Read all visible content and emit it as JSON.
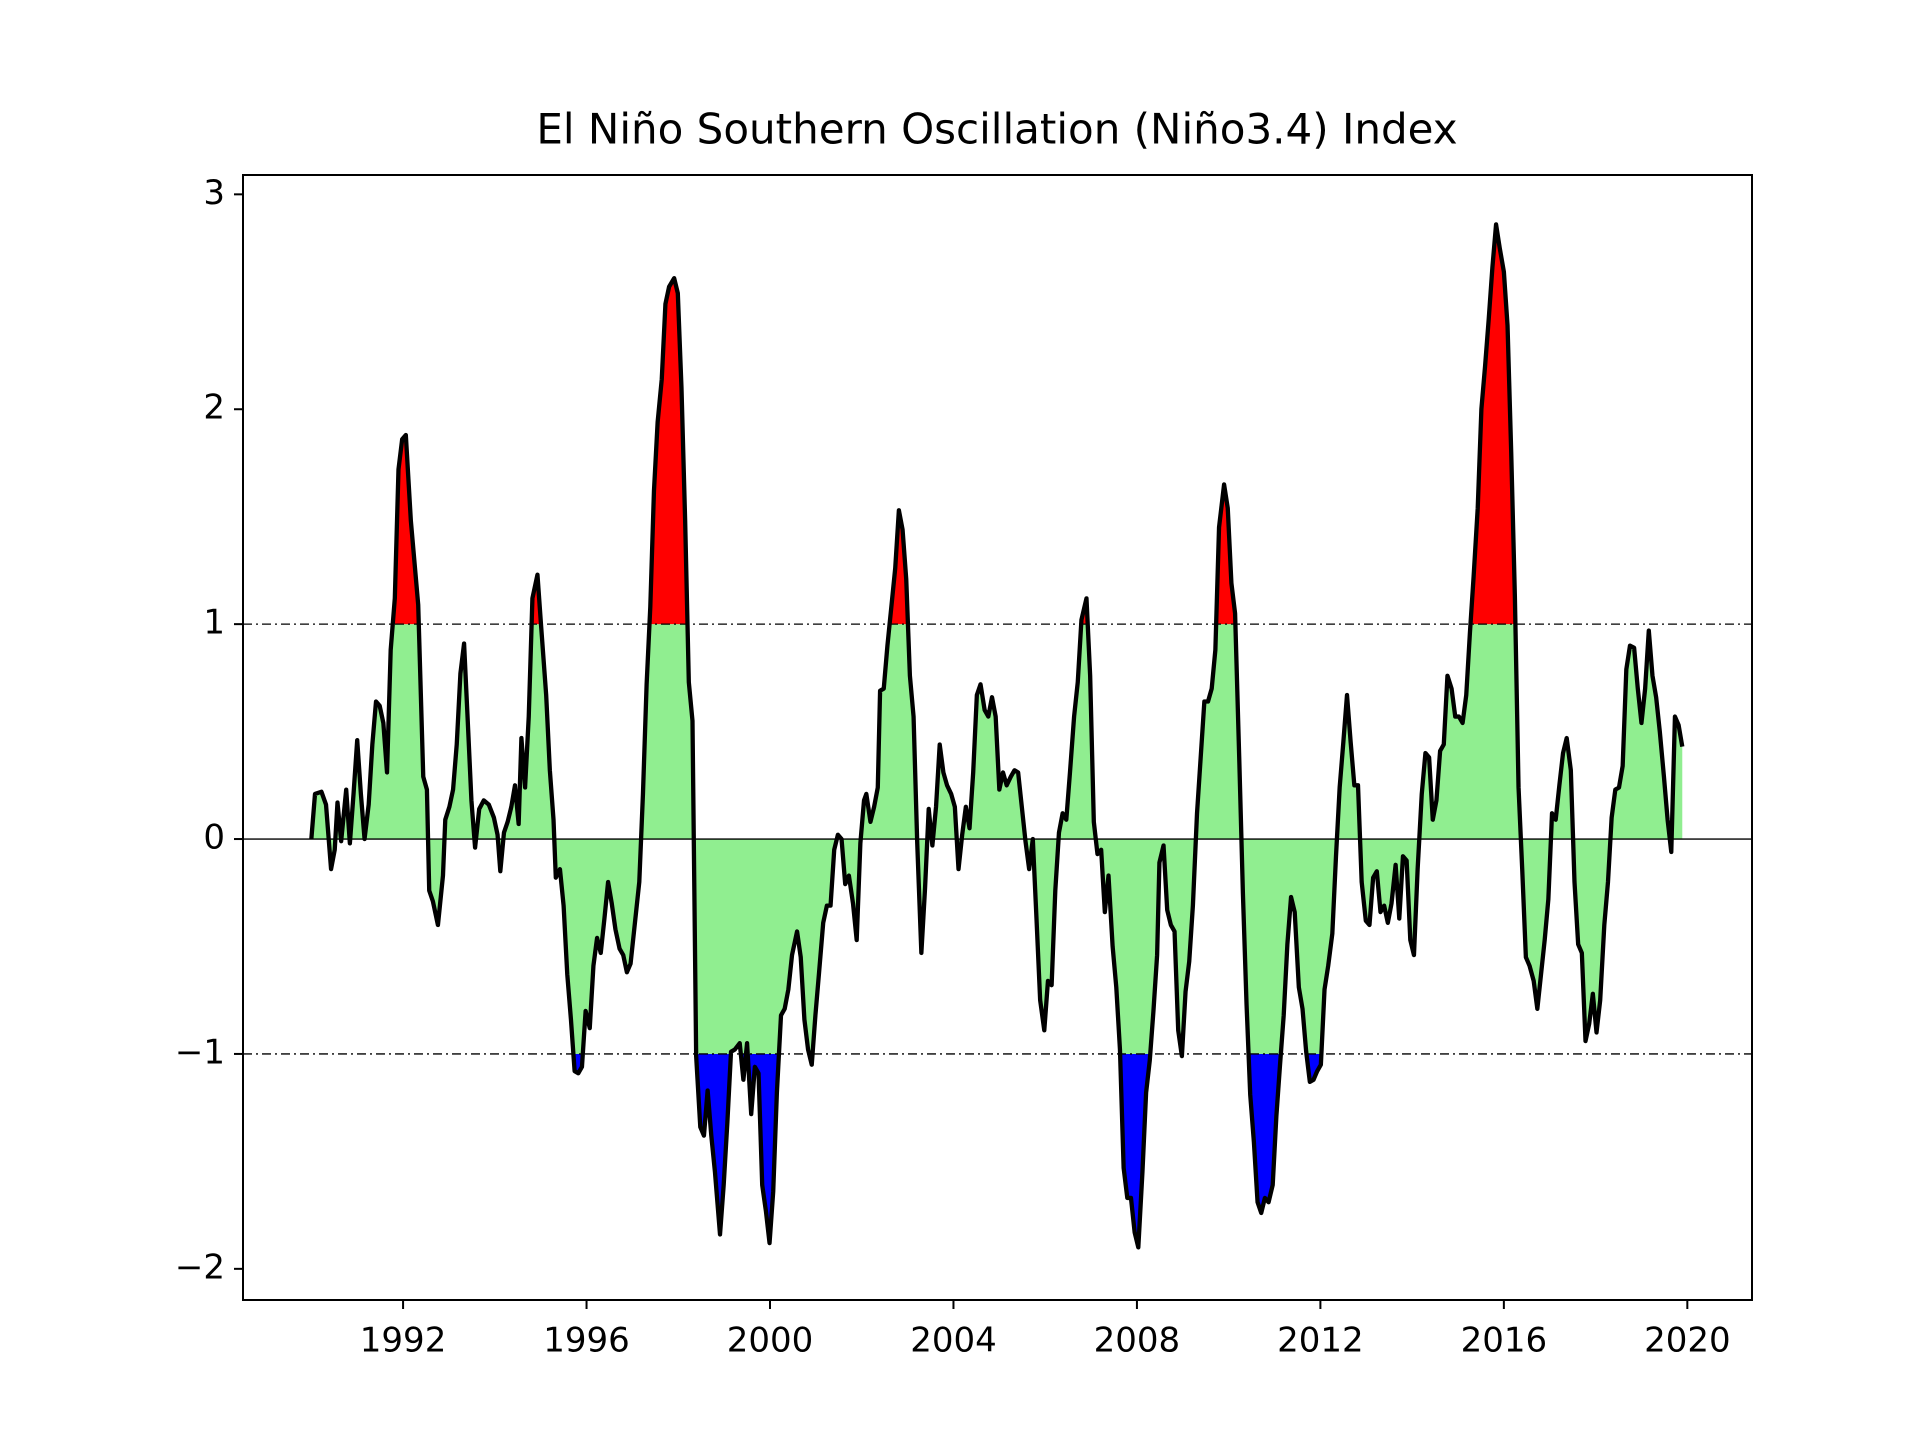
{
  "chart_data": {
    "type": "line",
    "title": "El Niño Southern Oscillation (Niño3.4) Index",
    "x": [
      1990.0,
      1990.08,
      1990.22,
      1990.32,
      1990.43,
      1990.51,
      1990.57,
      1990.65,
      1990.76,
      1990.84,
      1990.92,
      1991.0,
      1991.08,
      1991.16,
      1991.25,
      1991.33,
      1991.41,
      1991.49,
      1991.57,
      1991.65,
      1991.73,
      1991.82,
      1991.9,
      1991.98,
      1992.06,
      1992.17,
      1992.33,
      1992.44,
      1992.52,
      1992.57,
      1992.65,
      1992.76,
      1992.87,
      1992.92,
      1993.01,
      1993.09,
      1993.17,
      1993.25,
      1993.33,
      1993.41,
      1993.49,
      1993.57,
      1993.66,
      1993.76,
      1993.87,
      1993.98,
      1994.06,
      1994.12,
      1994.2,
      1994.28,
      1994.36,
      1994.44,
      1994.52,
      1994.58,
      1994.66,
      1994.74,
      1994.82,
      1994.93,
      1995.01,
      1995.12,
      1995.2,
      1995.28,
      1995.33,
      1995.42,
      1995.5,
      1995.58,
      1995.66,
      1995.74,
      1995.82,
      1995.9,
      1995.98,
      1996.07,
      1996.15,
      1996.23,
      1996.31,
      1996.39,
      1996.47,
      1996.55,
      1996.63,
      1996.72,
      1996.8,
      1996.88,
      1996.96,
      1997.04,
      1997.15,
      1997.23,
      1997.31,
      1997.39,
      1997.47,
      1997.55,
      1997.64,
      1997.72,
      1997.8,
      1997.91,
      1997.99,
      1998.07,
      1998.15,
      1998.23,
      1998.31,
      1998.39,
      1998.48,
      1998.56,
      1998.64,
      1998.72,
      1998.8,
      1998.91,
      1998.99,
      1999.07,
      1999.15,
      1999.23,
      1999.34,
      1999.42,
      1999.5,
      1999.59,
      1999.67,
      1999.75,
      1999.83,
      1999.91,
      1999.99,
      2000.07,
      2000.15,
      2000.24,
      2000.32,
      2000.4,
      2000.48,
      2000.59,
      2000.67,
      2000.75,
      2000.83,
      2000.91,
      2000.99,
      2001.07,
      2001.16,
      2001.24,
      2001.32,
      2001.4,
      2001.48,
      2001.56,
      2001.64,
      2001.72,
      2001.81,
      2001.89,
      2001.97,
      2002.05,
      2002.1,
      2002.19,
      2002.27,
      2002.35,
      2002.4,
      2002.48,
      2002.56,
      2002.65,
      2002.73,
      2002.81,
      2002.89,
      2002.97,
      2003.05,
      2003.13,
      2003.21,
      2003.3,
      2003.38,
      2003.46,
      2003.54,
      2003.62,
      2003.7,
      2003.78,
      2003.86,
      2003.95,
      2004.03,
      2004.11,
      2004.19,
      2004.27,
      2004.35,
      2004.43,
      2004.51,
      2004.59,
      2004.68,
      2004.76,
      2004.84,
      2004.92,
      2005.0,
      2005.08,
      2005.16,
      2005.25,
      2005.33,
      2005.41,
      2005.49,
      2005.57,
      2005.65,
      2005.73,
      2005.81,
      2005.89,
      2005.98,
      2006.06,
      2006.14,
      2006.22,
      2006.3,
      2006.38,
      2006.46,
      2006.54,
      2006.63,
      2006.71,
      2006.79,
      2006.9,
      2006.98,
      2007.06,
      2007.14,
      2007.22,
      2007.3,
      2007.38,
      2007.47,
      2007.55,
      2007.63,
      2007.71,
      2007.79,
      2007.87,
      2007.95,
      2008.03,
      2008.12,
      2008.2,
      2008.28,
      2008.36,
      2008.44,
      2008.49,
      2008.58,
      2008.66,
      2008.74,
      2008.82,
      2008.9,
      2008.98,
      2009.06,
      2009.14,
      2009.22,
      2009.31,
      2009.39,
      2009.47,
      2009.55,
      2009.63,
      2009.71,
      2009.79,
      2009.9,
      2009.98,
      2010.06,
      2010.14,
      2010.23,
      2010.31,
      2010.39,
      2010.47,
      2010.55,
      2010.63,
      2010.71,
      2010.79,
      2010.87,
      2010.96,
      2011.04,
      2011.12,
      2011.2,
      2011.28,
      2011.36,
      2011.44,
      2011.53,
      2011.61,
      2011.69,
      2011.77,
      2011.85,
      2011.93,
      2012.01,
      2012.09,
      2012.17,
      2012.26,
      2012.34,
      2012.42,
      2012.5,
      2012.58,
      2012.66,
      2012.74,
      2012.82,
      2012.9,
      2012.99,
      2013.07,
      2013.15,
      2013.23,
      2013.31,
      2013.39,
      2013.47,
      2013.55,
      2013.64,
      2013.72,
      2013.8,
      2013.88,
      2013.96,
      2014.04,
      2014.12,
      2014.21,
      2014.29,
      2014.37,
      2014.45,
      2014.53,
      2014.61,
      2014.69,
      2014.77,
      2014.86,
      2014.94,
      2015.02,
      2015.1,
      2015.18,
      2015.26,
      2015.34,
      2015.43,
      2015.51,
      2015.59,
      2015.67,
      2015.75,
      2015.83,
      2015.91,
      2016.0,
      2016.08,
      2016.16,
      2016.24,
      2016.32,
      2016.4,
      2016.48,
      2016.56,
      2016.65,
      2016.73,
      2016.81,
      2016.89,
      2016.97,
      2017.05,
      2017.13,
      2017.21,
      2017.29,
      2017.37,
      2017.46,
      2017.54,
      2017.62,
      2017.7,
      2017.78,
      2017.86,
      2017.94,
      2018.02,
      2018.1,
      2018.19,
      2018.27,
      2018.35,
      2018.43,
      2018.51,
      2018.59,
      2018.67,
      2018.75,
      2018.84,
      2018.92,
      2019.0,
      2019.08,
      2019.16,
      2019.24,
      2019.32,
      2019.4,
      2019.49,
      2019.57,
      2019.65,
      2019.73,
      2019.81,
      2019.89
    ],
    "values": [
      0.0,
      0.21,
      0.22,
      0.16,
      -0.14,
      -0.05,
      0.17,
      -0.01,
      0.23,
      -0.02,
      0.21,
      0.46,
      0.21,
      0.0,
      0.16,
      0.44,
      0.64,
      0.62,
      0.54,
      0.31,
      0.88,
      1.12,
      1.72,
      1.86,
      1.88,
      1.48,
      1.09,
      0.29,
      0.23,
      -0.24,
      -0.29,
      -0.4,
      -0.17,
      0.09,
      0.15,
      0.23,
      0.44,
      0.77,
      0.91,
      0.55,
      0.18,
      -0.04,
      0.14,
      0.18,
      0.16,
      0.1,
      0.02,
      -0.15,
      0.03,
      0.08,
      0.15,
      0.25,
      0.07,
      0.47,
      0.24,
      0.57,
      1.12,
      1.23,
      0.99,
      0.67,
      0.32,
      0.09,
      -0.18,
      -0.14,
      -0.31,
      -0.63,
      -0.84,
      -1.08,
      -1.09,
      -1.06,
      -0.8,
      -0.88,
      -0.59,
      -0.46,
      -0.53,
      -0.37,
      -0.2,
      -0.3,
      -0.42,
      -0.51,
      -0.54,
      -0.62,
      -0.58,
      -0.42,
      -0.2,
      0.21,
      0.72,
      1.08,
      1.62,
      1.94,
      2.14,
      2.49,
      2.57,
      2.61,
      2.54,
      2.1,
      1.48,
      0.73,
      0.55,
      -1.01,
      -1.34,
      -1.38,
      -1.17,
      -1.38,
      -1.55,
      -1.84,
      -1.61,
      -1.32,
      -0.99,
      -0.98,
      -0.95,
      -1.12,
      -0.95,
      -1.28,
      -1.06,
      -1.09,
      -1.61,
      -1.73,
      -1.88,
      -1.64,
      -1.18,
      -0.82,
      -0.79,
      -0.7,
      -0.54,
      -0.43,
      -0.55,
      -0.84,
      -0.98,
      -1.05,
      -0.82,
      -0.62,
      -0.39,
      -0.31,
      -0.31,
      -0.05,
      0.02,
      0.0,
      -0.21,
      -0.17,
      -0.3,
      -0.47,
      -0.02,
      0.18,
      0.21,
      0.08,
      0.15,
      0.24,
      0.69,
      0.7,
      0.9,
      1.09,
      1.26,
      1.53,
      1.44,
      1.21,
      0.76,
      0.57,
      -0.02,
      -0.53,
      -0.23,
      0.14,
      -0.03,
      0.15,
      0.44,
      0.31,
      0.25,
      0.21,
      0.15,
      -0.14,
      0.02,
      0.15,
      0.05,
      0.31,
      0.67,
      0.72,
      0.6,
      0.57,
      0.66,
      0.57,
      0.23,
      0.31,
      0.25,
      0.29,
      0.32,
      0.31,
      0.15,
      -0.01,
      -0.14,
      0.0,
      -0.37,
      -0.75,
      -0.89,
      -0.66,
      -0.68,
      -0.24,
      0.03,
      0.12,
      0.09,
      0.31,
      0.57,
      0.73,
      1.02,
      1.12,
      0.76,
      0.08,
      -0.07,
      -0.05,
      -0.34,
      -0.17,
      -0.5,
      -0.69,
      -0.98,
      -1.53,
      -1.67,
      -1.67,
      -1.83,
      -1.9,
      -1.55,
      -1.18,
      -1.03,
      -0.8,
      -0.54,
      -0.11,
      -0.03,
      -0.33,
      -0.4,
      -0.43,
      -0.89,
      -1.01,
      -0.71,
      -0.57,
      -0.31,
      0.12,
      0.38,
      0.64,
      0.64,
      0.7,
      0.88,
      1.45,
      1.65,
      1.54,
      1.19,
      1.05,
      0.38,
      -0.25,
      -0.77,
      -1.19,
      -1.41,
      -1.69,
      -1.74,
      -1.67,
      -1.69,
      -1.61,
      -1.29,
      -1.05,
      -0.82,
      -0.49,
      -0.27,
      -0.34,
      -0.69,
      -0.79,
      -0.99,
      -1.13,
      -1.12,
      -1.08,
      -1.05,
      -0.7,
      -0.59,
      -0.44,
      -0.08,
      0.24,
      0.45,
      0.67,
      0.45,
      0.25,
      0.25,
      -0.2,
      -0.38,
      -0.4,
      -0.18,
      -0.15,
      -0.34,
      -0.31,
      -0.39,
      -0.3,
      -0.12,
      -0.37,
      -0.08,
      -0.1,
      -0.47,
      -0.54,
      -0.14,
      0.21,
      0.4,
      0.38,
      0.09,
      0.18,
      0.41,
      0.44,
      0.76,
      0.7,
      0.57,
      0.57,
      0.54,
      0.67,
      0.96,
      1.22,
      1.54,
      2.0,
      2.2,
      2.42,
      2.66,
      2.86,
      2.75,
      2.64,
      2.39,
      1.8,
      1.13,
      0.24,
      -0.14,
      -0.55,
      -0.59,
      -0.66,
      -0.79,
      -0.63,
      -0.47,
      -0.28,
      0.12,
      0.09,
      0.25,
      0.4,
      0.47,
      0.32,
      -0.2,
      -0.49,
      -0.53,
      -0.94,
      -0.86,
      -0.72,
      -0.9,
      -0.75,
      -0.4,
      -0.2,
      0.1,
      0.23,
      0.24,
      0.34,
      0.79,
      0.9,
      0.89,
      0.7,
      0.54,
      0.7,
      0.97,
      0.76,
      0.66,
      0.5,
      0.29,
      0.09,
      -0.06,
      0.57,
      0.53,
      0.43
    ],
    "xlim": [
      1988.51,
      2021.41
    ],
    "ylim": [
      -2.145,
      3.09
    ],
    "xticks": [
      1992,
      1996,
      2000,
      2004,
      2008,
      2012,
      2016,
      2020
    ],
    "yticks": [
      {
        "value": -2,
        "label": "−2"
      },
      {
        "value": -1,
        "label": "−1"
      },
      0,
      1,
      2,
      3
    ],
    "baseline": 0,
    "thresholds": [
      -1,
      1
    ],
    "line_color": "black",
    "fill_colors": {
      "below": "blue",
      "neutral": "lightgreen",
      "above": "red"
    }
  }
}
